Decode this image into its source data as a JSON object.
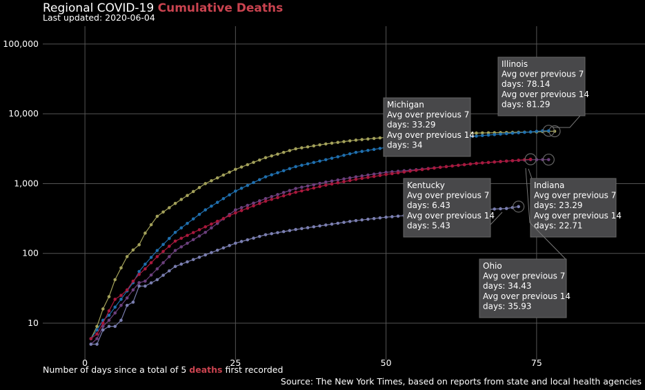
{
  "header": {
    "title_prefix": "Regional COVID-19",
    "title_accent": "Cumulative Deaths",
    "updated": "Last updated: 2020-06-04"
  },
  "footer": {
    "xlabel_prefix": "Number of days since a total of 5",
    "xlabel_accent": "deaths",
    "xlabel_suffix": "first recorded",
    "source": "Source: The New York Times, based on reports from state and local health agencies"
  },
  "chart_data": {
    "type": "line",
    "title": "Regional COVID-19 Cumulative Deaths",
    "xlabel": "Number of days since a total of 5 deaths first recorded",
    "ylabel": "",
    "xlim": [
      -7,
      93
    ],
    "ylim": [
      3,
      180000
    ],
    "yscale": "log",
    "grid": true,
    "x_ticks": [
      0,
      25,
      50,
      75
    ],
    "y_ticks": [
      {
        "v": 10,
        "label": "10"
      },
      {
        "v": 100,
        "label": "100"
      },
      {
        "v": 1000,
        "label": "1,000"
      },
      {
        "v": 10000,
        "label": "10,000"
      },
      {
        "v": 100000,
        "label": "100,000"
      }
    ],
    "series": [
      {
        "name": "Illinois",
        "color": "#a3a15a",
        "n": 78,
        "anchors": [
          [
            1,
            6
          ],
          [
            2,
            9
          ],
          [
            3,
            16
          ],
          [
            4,
            24
          ],
          [
            5,
            42
          ],
          [
            6,
            62
          ],
          [
            7,
            90
          ],
          [
            8,
            112
          ],
          [
            9,
            133
          ],
          [
            10,
            195
          ],
          [
            12,
            340
          ],
          [
            15,
            520
          ],
          [
            20,
            1000
          ],
          [
            25,
            1600
          ],
          [
            30,
            2350
          ],
          [
            35,
            3150
          ],
          [
            40,
            3700
          ],
          [
            45,
            4200
          ],
          [
            50,
            4600
          ],
          [
            55,
            4900
          ],
          [
            60,
            5100
          ],
          [
            65,
            5300
          ],
          [
            70,
            5400
          ],
          [
            75,
            5500
          ],
          [
            77,
            5621
          ]
        ]
      },
      {
        "name": "Michigan",
        "color": "#1f6fae",
        "n": 77,
        "anchors": [
          [
            1,
            6
          ],
          [
            2,
            8
          ],
          [
            3,
            11
          ],
          [
            4,
            13
          ],
          [
            5,
            17
          ],
          [
            6,
            22
          ],
          [
            7,
            29
          ],
          [
            8,
            38
          ],
          [
            9,
            55
          ],
          [
            10,
            70
          ],
          [
            12,
            110
          ],
          [
            15,
            200
          ],
          [
            20,
            420
          ],
          [
            25,
            780
          ],
          [
            30,
            1250
          ],
          [
            35,
            1750
          ],
          [
            40,
            2200
          ],
          [
            45,
            2800
          ],
          [
            50,
            3300
          ],
          [
            55,
            3800
          ],
          [
            60,
            4300
          ],
          [
            65,
            4800
          ],
          [
            70,
            5200
          ],
          [
            74,
            5500
          ],
          [
            76,
            5708
          ]
        ]
      },
      {
        "name": "Indiana",
        "color": "#6b3f7c",
        "n": 77,
        "anchors": [
          [
            1,
            5
          ],
          [
            2,
            6
          ],
          [
            3,
            9
          ],
          [
            4,
            11
          ],
          [
            5,
            14
          ],
          [
            6,
            18
          ],
          [
            7,
            23
          ],
          [
            8,
            30
          ],
          [
            9,
            38
          ],
          [
            10,
            40
          ],
          [
            12,
            60
          ],
          [
            15,
            110
          ],
          [
            20,
            200
          ],
          [
            25,
            420
          ],
          [
            30,
            610
          ],
          [
            35,
            850
          ],
          [
            40,
            1050
          ],
          [
            45,
            1250
          ],
          [
            50,
            1450
          ],
          [
            55,
            1580
          ],
          [
            60,
            1750
          ],
          [
            65,
            1950
          ],
          [
            70,
            2100
          ],
          [
            74,
            2200
          ],
          [
            76,
            2204
          ]
        ]
      },
      {
        "name": "Ohio",
        "color": "#a8183c",
        "n": 74,
        "anchors": [
          [
            1,
            6
          ],
          [
            2,
            7
          ],
          [
            3,
            10
          ],
          [
            4,
            15
          ],
          [
            5,
            22
          ],
          [
            6,
            25
          ],
          [
            7,
            30
          ],
          [
            8,
            40
          ],
          [
            9,
            50
          ],
          [
            10,
            60
          ],
          [
            12,
            90
          ],
          [
            15,
            150
          ],
          [
            20,
            240
          ],
          [
            25,
            380
          ],
          [
            30,
            560
          ],
          [
            35,
            750
          ],
          [
            40,
            950
          ],
          [
            45,
            1150
          ],
          [
            50,
            1350
          ],
          [
            55,
            1550
          ],
          [
            60,
            1750
          ],
          [
            65,
            1950
          ],
          [
            70,
            2100
          ],
          [
            73,
            2200
          ],
          [
            74,
            2232
          ]
        ]
      },
      {
        "name": "Kentucky",
        "color": "#7a7eb0",
        "n": 72,
        "anchors": [
          [
            1,
            5
          ],
          [
            2,
            5
          ],
          [
            3,
            8
          ],
          [
            4,
            9
          ],
          [
            5,
            9
          ],
          [
            6,
            11
          ],
          [
            7,
            18
          ],
          [
            8,
            20
          ],
          [
            9,
            34
          ],
          [
            10,
            34
          ],
          [
            12,
            42
          ],
          [
            15,
            65
          ],
          [
            20,
            95
          ],
          [
            25,
            140
          ],
          [
            30,
            185
          ],
          [
            35,
            220
          ],
          [
            40,
            255
          ],
          [
            45,
            295
          ],
          [
            50,
            330
          ],
          [
            55,
            360
          ],
          [
            60,
            390
          ],
          [
            65,
            420
          ],
          [
            70,
            440
          ],
          [
            72,
            468
          ]
        ]
      }
    ],
    "annotations": [
      {
        "name": "Illinois",
        "lines": [
          "Illinois",
          "Avg over previous 7",
          "days: 78.14",
          "Avg over previous 14",
          "days: 81.29"
        ]
      },
      {
        "name": "Michigan",
        "lines": [
          "Michigan",
          "Avg over previous 7",
          "days: 33.29",
          "Avg over previous 14",
          "days: 34"
        ]
      },
      {
        "name": "Kentucky",
        "lines": [
          "Kentucky",
          "Avg over previous 7",
          "days: 6.43",
          "Avg over previous 14",
          "days: 5.43"
        ]
      },
      {
        "name": "Indiana",
        "lines": [
          "Indiana",
          "Avg over previous 7",
          "days: 23.29",
          "Avg over previous 14",
          "days: 22.71"
        ]
      },
      {
        "name": "Ohio",
        "lines": [
          "Ohio",
          "Avg over previous 7",
          "days: 34.43",
          "Avg over previous 14",
          "days: 35.93"
        ]
      }
    ]
  }
}
